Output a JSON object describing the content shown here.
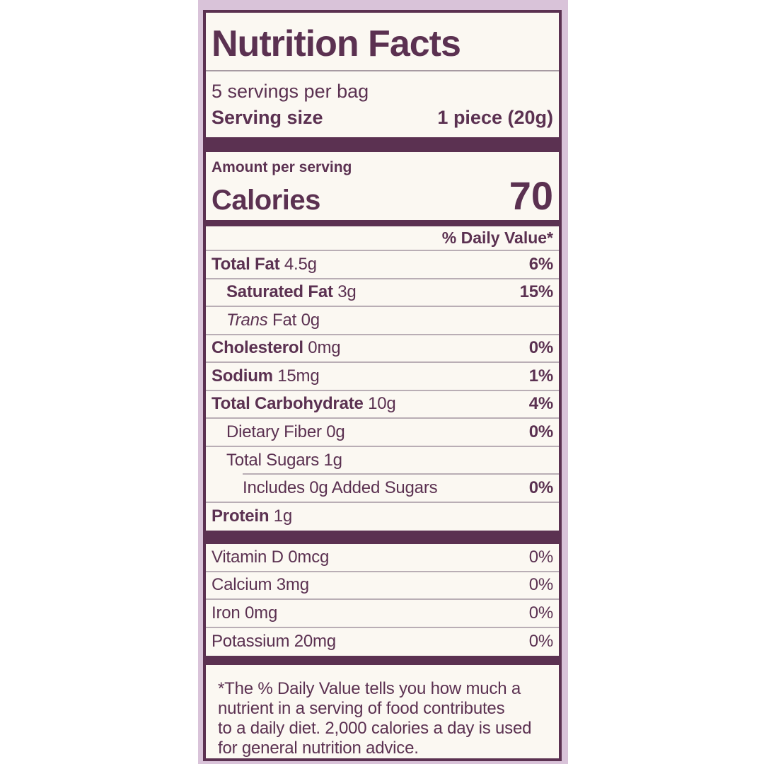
{
  "colors": {
    "ink": "#5b3151",
    "band_bg": "#d9c3d9",
    "label_bg": "#fbf8f2",
    "page_bg": "#ffffff",
    "rule": "#b9aeb5"
  },
  "label": {
    "title": "Nutrition Facts",
    "servings_per_container": "5 servings per bag",
    "serving_size_label": "Serving size",
    "serving_size_value": "1 piece (20g)",
    "amount_per_serving_label": "Amount per serving",
    "calories_label": "Calories",
    "calories_value": "70",
    "daily_value_header": "% Daily Value*",
    "nutrients": [
      {
        "name": "Total Fat",
        "amount": "4.5g",
        "percent": "6%",
        "name_bold": true,
        "percent_bold": true,
        "indent": 0
      },
      {
        "name": "Saturated Fat",
        "amount": "3g",
        "percent": "15%",
        "name_bold": true,
        "percent_bold": true,
        "indent": 1
      },
      {
        "name": "Trans",
        "amount": "Fat 0g",
        "percent": "",
        "name_italic": true,
        "indent": 1
      },
      {
        "name": "Cholesterol",
        "amount": "0mg",
        "percent": "0%",
        "name_bold": true,
        "percent_bold": true,
        "indent": 0
      },
      {
        "name": "Sodium",
        "amount": "15mg",
        "percent": "1%",
        "name_bold": true,
        "percent_bold": true,
        "indent": 0
      },
      {
        "name": "Total Carbohydrate",
        "amount": "10g",
        "percent": "4%",
        "name_bold": true,
        "percent_bold": true,
        "indent": 0
      },
      {
        "name": "Dietary Fiber",
        "amount": "0g",
        "percent": "0%",
        "percent_bold": true,
        "indent": 1
      },
      {
        "name": "Total Sugars",
        "amount": "1g",
        "percent": "",
        "indent": 1,
        "no_bottom_rule": true
      },
      {
        "name": "Includes 0g Added Sugars",
        "amount": "",
        "percent": "0%",
        "percent_bold": true,
        "indent": 2,
        "inset_top_rule": true
      },
      {
        "name": "Protein",
        "amount": "1g",
        "percent": "",
        "name_bold": true,
        "indent": 0,
        "no_bottom_rule": true
      }
    ],
    "micronutrients": [
      {
        "name": "Vitamin D 0mcg",
        "percent": "0%"
      },
      {
        "name": "Calcium 3mg",
        "percent": "0%"
      },
      {
        "name": "Iron 0mg",
        "percent": "0%"
      },
      {
        "name": "Potassium 20mg",
        "percent": "0%"
      }
    ],
    "footnote_lines": [
      "*The % Daily Value tells you how much a",
      "nutrient in a serving of food contributes",
      "to a daily diet. 2,000 calories a day is used",
      "for general nutrition advice."
    ]
  }
}
